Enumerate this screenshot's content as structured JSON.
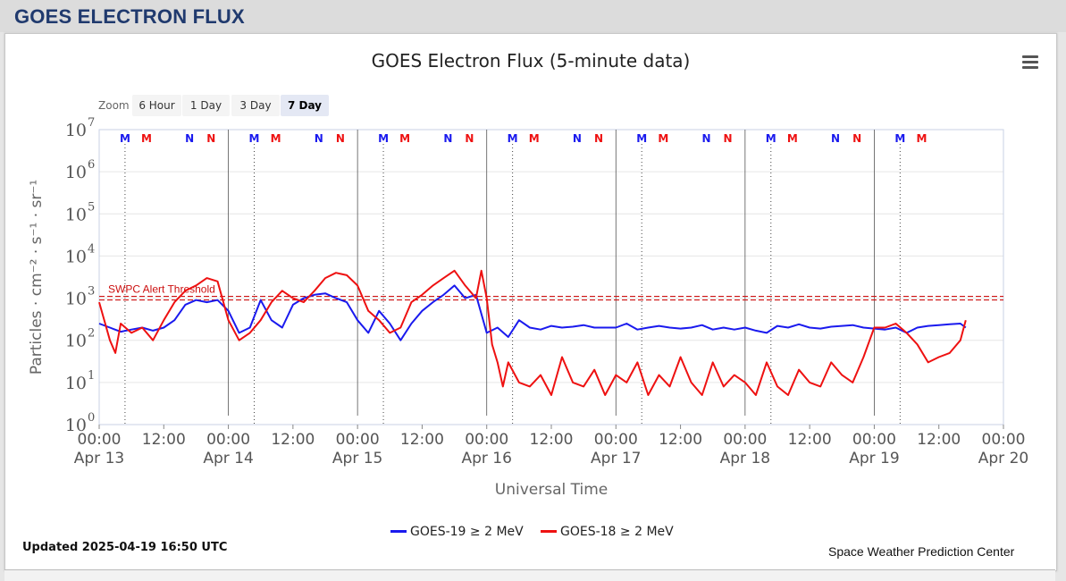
{
  "page": {
    "header": "GOES ELECTRON FLUX"
  },
  "toolbar": {
    "zoom_label": "Zoom",
    "zoom_buttons": [
      "6 Hour",
      "1 Day",
      "3 Day",
      "7 Day"
    ],
    "zoom_selected": "7 Day"
  },
  "footer": {
    "updated": "Updated 2025-04-19 16:50 UTC",
    "credit": "Space Weather Prediction Center"
  },
  "colors": {
    "goes19": "#1a1aee",
    "goes18": "#ee1111",
    "threshold": "#cc1111",
    "header_text": "#203a6e"
  },
  "chart_data": {
    "type": "line",
    "title": "GOES Electron Flux (5-minute data)",
    "xlabel": "Universal Time",
    "ylabel": "Particles · cm⁻² · s⁻¹ · sr⁻¹",
    "y_scale": "log",
    "ylim": [
      1,
      10000000
    ],
    "y_ticks": [
      {
        "base": "10",
        "exp": "0"
      },
      {
        "base": "10",
        "exp": "1"
      },
      {
        "base": "10",
        "exp": "2"
      },
      {
        "base": "10",
        "exp": "3"
      },
      {
        "base": "10",
        "exp": "4"
      },
      {
        "base": "10",
        "exp": "5"
      },
      {
        "base": "10",
        "exp": "6"
      },
      {
        "base": "10",
        "exp": "7"
      }
    ],
    "x_range_hours": [
      0,
      168
    ],
    "x_ticks": [
      {
        "t": 0,
        "time": "00:00",
        "date": "Apr 13"
      },
      {
        "t": 12,
        "time": "12:00",
        "date": ""
      },
      {
        "t": 24,
        "time": "00:00",
        "date": "Apr 14"
      },
      {
        "t": 36,
        "time": "12:00",
        "date": ""
      },
      {
        "t": 48,
        "time": "00:00",
        "date": "Apr 15"
      },
      {
        "t": 60,
        "time": "12:00",
        "date": ""
      },
      {
        "t": 72,
        "time": "00:00",
        "date": "Apr 16"
      },
      {
        "t": 84,
        "time": "12:00",
        "date": ""
      },
      {
        "t": 96,
        "time": "00:00",
        "date": "Apr 17"
      },
      {
        "t": 108,
        "time": "12:00",
        "date": ""
      },
      {
        "t": 120,
        "time": "00:00",
        "date": "Apr 18"
      },
      {
        "t": 132,
        "time": "12:00",
        "date": ""
      },
      {
        "t": 144,
        "time": "00:00",
        "date": "Apr 19"
      },
      {
        "t": 156,
        "time": "12:00",
        "date": ""
      },
      {
        "t": 168,
        "time": "00:00",
        "date": "Apr 20"
      }
    ],
    "threshold": {
      "label": "SWPC Alert Threshold",
      "value": 1000
    },
    "markers": [
      {
        "label": "M",
        "t": 4.8,
        "series": "GOES-19"
      },
      {
        "label": "M",
        "t": 8.8,
        "series": "GOES-18"
      },
      {
        "label": "N",
        "t": 16.8,
        "series": "GOES-19"
      },
      {
        "label": "N",
        "t": 20.8,
        "series": "GOES-18"
      },
      {
        "label": "M",
        "t": 28.8,
        "series": "GOES-19"
      },
      {
        "label": "M",
        "t": 32.8,
        "series": "GOES-18"
      },
      {
        "label": "N",
        "t": 40.8,
        "series": "GOES-19"
      },
      {
        "label": "N",
        "t": 44.8,
        "series": "GOES-18"
      },
      {
        "label": "M",
        "t": 52.8,
        "series": "GOES-19"
      },
      {
        "label": "M",
        "t": 56.8,
        "series": "GOES-18"
      },
      {
        "label": "N",
        "t": 64.8,
        "series": "GOES-19"
      },
      {
        "label": "N",
        "t": 68.8,
        "series": "GOES-18"
      },
      {
        "label": "M",
        "t": 76.8,
        "series": "GOES-19"
      },
      {
        "label": "M",
        "t": 80.8,
        "series": "GOES-18"
      },
      {
        "label": "N",
        "t": 88.8,
        "series": "GOES-19"
      },
      {
        "label": "N",
        "t": 92.8,
        "series": "GOES-18"
      },
      {
        "label": "M",
        "t": 100.8,
        "series": "GOES-19"
      },
      {
        "label": "M",
        "t": 104.8,
        "series": "GOES-18"
      },
      {
        "label": "N",
        "t": 112.8,
        "series": "GOES-19"
      },
      {
        "label": "N",
        "t": 116.8,
        "series": "GOES-18"
      },
      {
        "label": "M",
        "t": 124.8,
        "series": "GOES-19"
      },
      {
        "label": "M",
        "t": 128.8,
        "series": "GOES-18"
      },
      {
        "label": "N",
        "t": 136.8,
        "series": "GOES-19"
      },
      {
        "label": "N",
        "t": 140.8,
        "series": "GOES-18"
      },
      {
        "label": "M",
        "t": 148.8,
        "series": "GOES-19"
      },
      {
        "label": "M",
        "t": 152.8,
        "series": "GOES-18"
      }
    ],
    "series": [
      {
        "name": "GOES-19 ≥ 2 MeV",
        "color": "#1a1aee",
        "x": [
          0,
          2,
          4,
          6,
          8,
          10,
          12,
          14,
          16,
          18,
          20,
          22,
          24,
          26,
          28,
          30,
          32,
          34,
          36,
          38,
          40,
          42,
          44,
          46,
          48,
          50,
          52,
          54,
          56,
          58,
          60,
          62,
          64,
          66,
          68,
          70,
          72,
          74,
          76,
          78,
          80,
          82,
          84,
          86,
          88,
          90,
          92,
          94,
          96,
          98,
          100,
          102,
          104,
          106,
          108,
          110,
          112,
          114,
          116,
          118,
          120,
          122,
          124,
          126,
          128,
          130,
          132,
          134,
          136,
          138,
          140,
          142,
          144,
          146,
          148,
          150,
          152,
          154,
          156,
          158,
          160,
          161
        ],
        "y": [
          250,
          200,
          160,
          180,
          200,
          170,
          200,
          300,
          700,
          900,
          800,
          900,
          500,
          150,
          200,
          900,
          300,
          200,
          700,
          1000,
          1200,
          1300,
          1000,
          800,
          300,
          150,
          500,
          250,
          100,
          250,
          500,
          800,
          1200,
          2000,
          1000,
          1200,
          150,
          200,
          120,
          300,
          200,
          180,
          220,
          200,
          210,
          230,
          200,
          200,
          200,
          250,
          180,
          200,
          220,
          200,
          190,
          200,
          230,
          180,
          200,
          180,
          200,
          170,
          150,
          220,
          200,
          240,
          200,
          190,
          210,
          220,
          230,
          200,
          190,
          180,
          200,
          150,
          200,
          220,
          230,
          240,
          250,
          200
        ]
      },
      {
        "name": "GOES-18 ≥ 2 MeV",
        "color": "#ee1111",
        "x": [
          0,
          2,
          3,
          4,
          6,
          8,
          10,
          12,
          14,
          16,
          18,
          20,
          22,
          24,
          26,
          28,
          30,
          32,
          34,
          36,
          38,
          40,
          42,
          44,
          46,
          48,
          50,
          52,
          54,
          56,
          58,
          60,
          62,
          64,
          66,
          68,
          70,
          71,
          72,
          73,
          74,
          75,
          76,
          78,
          80,
          82,
          84,
          86,
          88,
          90,
          92,
          94,
          96,
          98,
          100,
          102,
          104,
          106,
          108,
          110,
          112,
          114,
          116,
          118,
          120,
          122,
          124,
          126,
          128,
          130,
          132,
          134,
          136,
          138,
          140,
          142,
          144,
          146,
          148,
          150,
          152,
          154,
          156,
          158,
          160,
          161
        ],
        "y": [
          800,
          100,
          50,
          250,
          150,
          200,
          100,
          300,
          800,
          1500,
          2000,
          3000,
          2500,
          300,
          100,
          150,
          300,
          800,
          1500,
          1000,
          800,
          1500,
          3000,
          4000,
          3500,
          2000,
          500,
          300,
          150,
          200,
          800,
          1200,
          2000,
          3000,
          4500,
          2000,
          1000,
          4500,
          1000,
          80,
          30,
          8,
          30,
          10,
          8,
          15,
          5,
          40,
          10,
          8,
          20,
          5,
          15,
          10,
          30,
          5,
          15,
          8,
          40,
          10,
          5,
          30,
          8,
          15,
          10,
          5,
          30,
          8,
          5,
          20,
          10,
          8,
          30,
          15,
          10,
          40,
          200,
          200,
          250,
          150,
          80,
          30,
          40,
          50,
          100,
          300
        ]
      }
    ]
  }
}
